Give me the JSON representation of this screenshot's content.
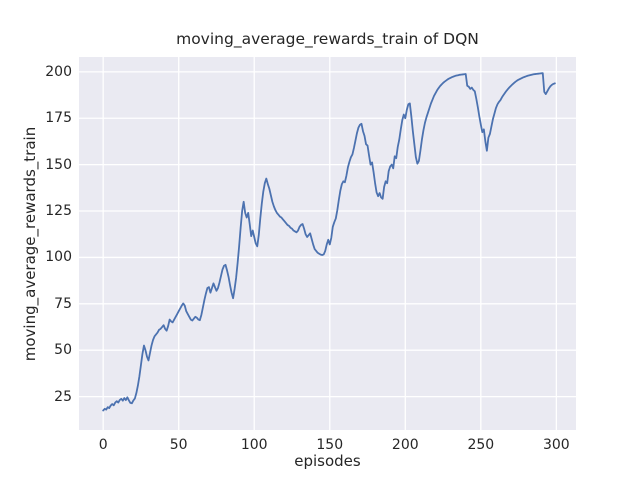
{
  "chart_data": {
    "type": "line",
    "title": "moving_average_rewards_train of DQN",
    "xlabel": "episodes",
    "ylabel": "moving_average_rewards_train",
    "xlim": [
      -16,
      313
    ],
    "ylim": [
      7,
      208
    ],
    "xticks": [
      0,
      50,
      100,
      150,
      200,
      250,
      300
    ],
    "yticks": [
      25,
      50,
      75,
      100,
      125,
      150,
      175,
      200
    ],
    "grid": true,
    "legend_position": "none",
    "style": {
      "line_color": "#4c72b0",
      "line_width": 1.8,
      "axes_background": "#eaeaf2",
      "grid_color": "#ffffff",
      "figure_background": "#ffffff",
      "text_color": "#262626"
    },
    "series": [
      {
        "name": "moving_average_rewards_train",
        "points": [
          [
            0,
            17.5
          ],
          [
            1,
            18.4
          ],
          [
            2,
            18.0
          ],
          [
            3,
            19.3
          ],
          [
            4,
            18.8
          ],
          [
            5,
            20.2
          ],
          [
            6,
            21.0
          ],
          [
            7,
            20.3
          ],
          [
            8,
            21.8
          ],
          [
            9,
            22.5
          ],
          [
            10,
            21.8
          ],
          [
            11,
            23.2
          ],
          [
            12,
            23.8
          ],
          [
            13,
            22.8
          ],
          [
            14,
            24.2
          ],
          [
            15,
            23.1
          ],
          [
            16,
            24.6
          ],
          [
            17,
            23.0
          ],
          [
            18,
            21.6
          ],
          [
            19,
            21.4
          ],
          [
            20,
            22.9
          ],
          [
            21,
            24.0
          ],
          [
            22,
            27.0
          ],
          [
            23,
            31.0
          ],
          [
            24,
            36.0
          ],
          [
            25,
            42.0
          ],
          [
            26,
            48.0
          ],
          [
            27,
            52.5
          ],
          [
            28,
            50.0
          ],
          [
            29,
            46.5
          ],
          [
            30,
            44.5
          ],
          [
            31,
            48.5
          ],
          [
            32,
            52.5
          ],
          [
            33,
            55.5
          ],
          [
            34,
            57.5
          ],
          [
            35,
            58.5
          ],
          [
            36,
            59.5
          ],
          [
            37,
            61.0
          ],
          [
            38,
            61.5
          ],
          [
            39,
            62.5
          ],
          [
            40,
            63.5
          ],
          [
            41,
            61.5
          ],
          [
            42,
            60.5
          ],
          [
            43,
            63.0
          ],
          [
            44,
            66.5
          ],
          [
            45,
            65.5
          ],
          [
            46,
            65.0
          ],
          [
            47,
            66.5
          ],
          [
            48,
            68.0
          ],
          [
            49,
            69.5
          ],
          [
            50,
            71.0
          ],
          [
            51,
            72.5
          ],
          [
            52,
            74.0
          ],
          [
            53,
            75.2
          ],
          [
            54,
            74.0
          ],
          [
            55,
            71.0
          ],
          [
            56,
            69.5
          ],
          [
            57,
            68.0
          ],
          [
            58,
            66.5
          ],
          [
            59,
            66.0
          ],
          [
            60,
            67.0
          ],
          [
            61,
            68.0
          ],
          [
            62,
            67.5
          ],
          [
            63,
            66.5
          ],
          [
            64,
            66.2
          ],
          [
            65,
            69.0
          ],
          [
            66,
            73.0
          ],
          [
            67,
            77.0
          ],
          [
            68,
            80.5
          ],
          [
            69,
            83.5
          ],
          [
            70,
            84.0
          ],
          [
            71,
            81.0
          ],
          [
            72,
            83.5
          ],
          [
            73,
            86.0
          ],
          [
            74,
            84.0
          ],
          [
            75,
            82.0
          ],
          [
            76,
            83.5
          ],
          [
            77,
            86.5
          ],
          [
            78,
            90.0
          ],
          [
            79,
            93.5
          ],
          [
            80,
            95.5
          ],
          [
            81,
            96.0
          ],
          [
            82,
            93.0
          ],
          [
            83,
            89.5
          ],
          [
            84,
            85.0
          ],
          [
            85,
            81.0
          ],
          [
            86,
            78.0
          ],
          [
            87,
            83.0
          ],
          [
            88,
            89.0
          ],
          [
            89,
            97.0
          ],
          [
            90,
            106.0
          ],
          [
            91,
            116.0
          ],
          [
            92,
            125.0
          ],
          [
            93,
            130.0
          ],
          [
            94,
            124.0
          ],
          [
            95,
            121.5
          ],
          [
            96,
            124.0
          ],
          [
            97,
            118.0
          ],
          [
            98,
            111.5
          ],
          [
            99,
            114.5
          ],
          [
            100,
            111.0
          ],
          [
            101,
            107.5
          ],
          [
            102,
            106.0
          ],
          [
            103,
            112.0
          ],
          [
            104,
            121.0
          ],
          [
            105,
            129.0
          ],
          [
            106,
            135.5
          ],
          [
            107,
            140.0
          ],
          [
            108,
            142.5
          ],
          [
            109,
            139.5
          ],
          [
            110,
            137.0
          ],
          [
            111,
            133.5
          ],
          [
            112,
            130.0
          ],
          [
            113,
            127.5
          ],
          [
            114,
            125.5
          ],
          [
            115,
            124.0
          ],
          [
            116,
            123.0
          ],
          [
            117,
            122.0
          ],
          [
            118,
            121.5
          ],
          [
            119,
            120.5
          ],
          [
            120,
            119.5
          ],
          [
            121,
            118.5
          ],
          [
            122,
            117.5
          ],
          [
            123,
            117.0
          ],
          [
            124,
            116.0
          ],
          [
            125,
            115.5
          ],
          [
            126,
            114.5
          ],
          [
            127,
            114.0
          ],
          [
            128,
            113.5
          ],
          [
            129,
            114.5
          ],
          [
            130,
            116.5
          ],
          [
            131,
            117.5
          ],
          [
            132,
            118.0
          ],
          [
            133,
            115.5
          ],
          [
            134,
            112.5
          ],
          [
            135,
            111.0
          ],
          [
            136,
            112.0
          ],
          [
            137,
            113.0
          ],
          [
            138,
            110.0
          ],
          [
            139,
            107.0
          ],
          [
            140,
            104.5
          ],
          [
            141,
            103.5
          ],
          [
            142,
            102.5
          ],
          [
            143,
            102.0
          ],
          [
            144,
            101.5
          ],
          [
            145,
            101.3
          ],
          [
            146,
            101.6
          ],
          [
            147,
            103.5
          ],
          [
            148,
            107.0
          ],
          [
            149,
            109.5
          ],
          [
            150,
            107.0
          ],
          [
            151,
            110.5
          ],
          [
            152,
            116.5
          ],
          [
            153,
            119.0
          ],
          [
            154,
            121.0
          ],
          [
            155,
            125.5
          ],
          [
            156,
            131.0
          ],
          [
            157,
            136.0
          ],
          [
            158,
            139.5
          ],
          [
            159,
            141.0
          ],
          [
            160,
            140.5
          ],
          [
            161,
            144.0
          ],
          [
            162,
            148.5
          ],
          [
            163,
            151.5
          ],
          [
            164,
            154.0
          ],
          [
            165,
            155.5
          ],
          [
            166,
            159.0
          ],
          [
            167,
            163.0
          ],
          [
            168,
            167.0
          ],
          [
            169,
            170.0
          ],
          [
            170,
            171.5
          ],
          [
            171,
            172.0
          ],
          [
            172,
            168.0
          ],
          [
            173,
            165.5
          ],
          [
            174,
            161.0
          ],
          [
            175,
            160.3
          ],
          [
            176,
            155.0
          ],
          [
            177,
            150.0
          ],
          [
            178,
            151.2
          ],
          [
            179,
            146.0
          ],
          [
            180,
            140.0
          ],
          [
            181,
            135.0
          ],
          [
            182,
            133.0
          ],
          [
            183,
            134.7
          ],
          [
            184,
            132.3
          ],
          [
            185,
            131.6
          ],
          [
            186,
            138.0
          ],
          [
            187,
            141.0
          ],
          [
            188,
            140.0
          ],
          [
            189,
            146.5
          ],
          [
            190,
            149.0
          ],
          [
            191,
            150.0
          ],
          [
            192,
            148.0
          ],
          [
            193,
            154.5
          ],
          [
            194,
            153.5
          ],
          [
            195,
            159.5
          ],
          [
            196,
            163.5
          ],
          [
            197,
            169.0
          ],
          [
            198,
            174.0
          ],
          [
            199,
            177.0
          ],
          [
            200,
            175.0
          ],
          [
            201,
            179.5
          ],
          [
            202,
            182.5
          ],
          [
            203,
            183.0
          ],
          [
            204,
            176.0
          ],
          [
            205,
            168.0
          ],
          [
            206,
            161.0
          ],
          [
            207,
            154.0
          ],
          [
            208,
            150.5
          ],
          [
            209,
            152.0
          ],
          [
            210,
            157.5
          ],
          [
            211,
            163.5
          ],
          [
            212,
            168.5
          ],
          [
            213,
            172.5
          ],
          [
            214,
            175.5
          ],
          [
            215,
            178.0
          ],
          [
            216,
            180.5
          ],
          [
            217,
            183.0
          ],
          [
            218,
            185.0
          ],
          [
            219,
            187.0
          ],
          [
            220,
            188.5
          ],
          [
            221,
            190.0
          ],
          [
            222,
            191.2
          ],
          [
            223,
            192.3
          ],
          [
            224,
            193.2
          ],
          [
            225,
            194.0
          ],
          [
            226,
            194.7
          ],
          [
            227,
            195.3
          ],
          [
            228,
            195.9
          ],
          [
            229,
            196.4
          ],
          [
            230,
            196.8
          ],
          [
            231,
            197.2
          ],
          [
            232,
            197.5
          ],
          [
            233,
            197.8
          ],
          [
            234,
            198.0
          ],
          [
            235,
            198.2
          ],
          [
            236,
            198.4
          ],
          [
            237,
            198.5
          ],
          [
            238,
            198.6
          ],
          [
            239,
            198.7
          ],
          [
            240,
            198.8
          ],
          [
            241,
            192.5
          ],
          [
            242,
            192.0
          ],
          [
            243,
            190.8
          ],
          [
            244,
            191.5
          ],
          [
            245,
            190.3
          ],
          [
            246,
            189.5
          ],
          [
            247,
            185.5
          ],
          [
            248,
            181.0
          ],
          [
            249,
            176.0
          ],
          [
            250,
            171.5
          ],
          [
            251,
            167.5
          ],
          [
            252,
            169.0
          ],
          [
            253,
            162.5
          ],
          [
            254,
            157.5
          ],
          [
            255,
            164.5
          ],
          [
            256,
            166.5
          ],
          [
            257,
            170.5
          ],
          [
            258,
            174.5
          ],
          [
            259,
            177.5
          ],
          [
            260,
            180.5
          ],
          [
            261,
            182.5
          ],
          [
            262,
            183.8
          ],
          [
            263,
            184.8
          ],
          [
            264,
            186.3
          ],
          [
            265,
            187.5
          ],
          [
            266,
            188.7
          ],
          [
            267,
            189.8
          ],
          [
            268,
            190.8
          ],
          [
            269,
            191.7
          ],
          [
            270,
            192.5
          ],
          [
            271,
            193.3
          ],
          [
            272,
            194.0
          ],
          [
            273,
            194.7
          ],
          [
            274,
            195.3
          ],
          [
            275,
            195.8
          ],
          [
            276,
            196.2
          ],
          [
            277,
            196.6
          ],
          [
            278,
            197.0
          ],
          [
            279,
            197.3
          ],
          [
            280,
            197.6
          ],
          [
            281,
            197.9
          ],
          [
            282,
            198.1
          ],
          [
            283,
            198.3
          ],
          [
            284,
            198.5
          ],
          [
            285,
            198.7
          ],
          [
            286,
            198.8
          ],
          [
            287,
            198.9
          ],
          [
            288,
            199.0
          ],
          [
            289,
            199.1
          ],
          [
            290,
            199.2
          ],
          [
            291,
            199.3
          ],
          [
            292,
            189.2
          ],
          [
            293,
            188.0
          ],
          [
            294,
            189.5
          ],
          [
            295,
            191.0
          ],
          [
            296,
            192.2
          ],
          [
            297,
            193.0
          ],
          [
            298,
            193.5
          ],
          [
            299,
            193.8
          ]
        ]
      }
    ]
  }
}
